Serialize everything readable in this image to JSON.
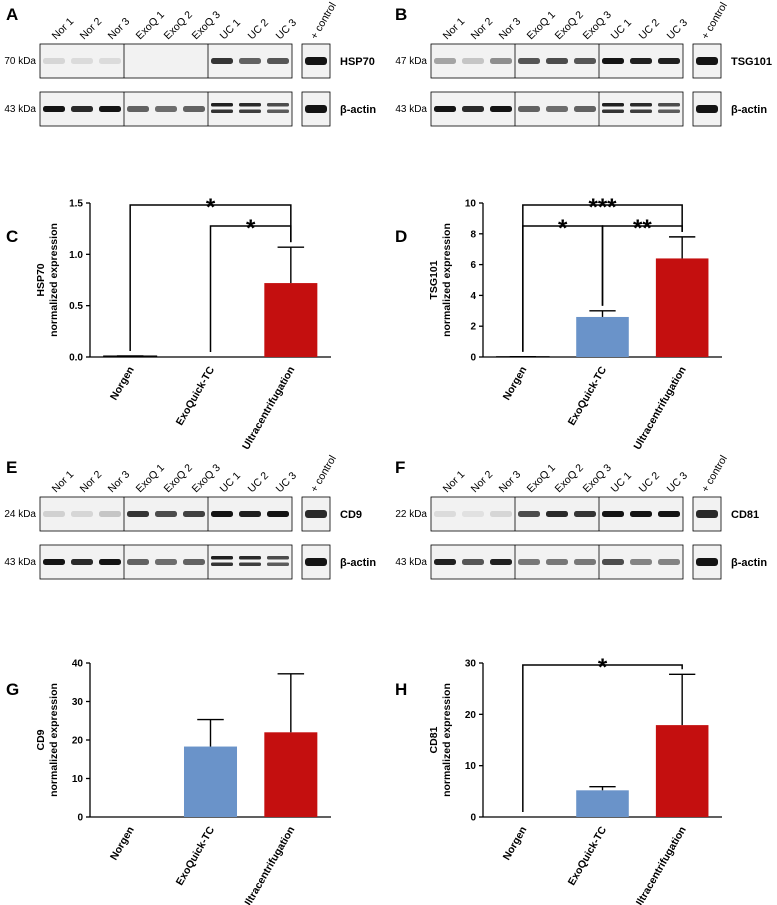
{
  "colors": {
    "norgen": "#ffffff",
    "exoquick": "#6a93c9",
    "uc": "#c40f0f",
    "band": "#141414"
  },
  "blots": [
    {
      "id": "A",
      "label": "A",
      "lanes": [
        "Nor 1",
        "Nor 2",
        "Nor 3",
        "ExoQ 1",
        "ExoQ 2",
        "ExoQ 3",
        "UC 1",
        "UC 2",
        "UC 3"
      ],
      "control_label": "+ control",
      "rows": [
        {
          "kda": "70 kDa",
          "protein": "HSP70",
          "intensities": [
            0.12,
            0.1,
            0.1,
            0,
            0,
            0,
            0.85,
            0.65,
            0.7
          ],
          "double": false,
          "control": 1.0
        },
        {
          "kda": "43 kDa",
          "protein": "β-actin",
          "intensities": [
            1.0,
            0.9,
            1.0,
            0.65,
            0.6,
            0.65,
            0.95,
            0.9,
            0.75
          ],
          "double": true,
          "control": 1.0
        }
      ]
    },
    {
      "id": "B",
      "label": "B",
      "lanes": [
        "Nor 1",
        "Nor 2",
        "Nor 3",
        "ExoQ 1",
        "ExoQ 2",
        "ExoQ 3",
        "UC 1",
        "UC 2",
        "UC 3"
      ],
      "control_label": "+ control",
      "rows": [
        {
          "kda": "47 kDa",
          "protein": "TSG101",
          "intensities": [
            0.35,
            0.2,
            0.45,
            0.7,
            0.75,
            0.7,
            1.0,
            0.95,
            0.95
          ],
          "double": false,
          "control": 1.0
        },
        {
          "kda": "43 kDa",
          "protein": "β-actin",
          "intensities": [
            1.0,
            0.9,
            1.0,
            0.65,
            0.6,
            0.65,
            0.95,
            0.9,
            0.75
          ],
          "double": true,
          "control": 1.0
        }
      ]
    },
    {
      "id": "E",
      "label": "E",
      "lanes": [
        "Nor 1",
        "Nor 2",
        "Nor 3",
        "ExoQ 1",
        "ExoQ 2",
        "ExoQ 3",
        "UC 1",
        "UC 2",
        "UC 3"
      ],
      "control_label": "+ control",
      "rows": [
        {
          "kda": "24 kDa",
          "protein": "CD9",
          "intensities": [
            0.15,
            0.12,
            0.2,
            0.85,
            0.75,
            0.8,
            1.0,
            0.95,
            1.0
          ],
          "double": false,
          "control": 0.9
        },
        {
          "kda": "43 kDa",
          "protein": "β-actin",
          "intensities": [
            1.0,
            0.9,
            1.0,
            0.65,
            0.6,
            0.65,
            0.95,
            0.9,
            0.75
          ],
          "double": true,
          "control": 1.0
        }
      ]
    },
    {
      "id": "F",
      "label": "F",
      "lanes": [
        "Nor 1",
        "Nor 2",
        "Nor 3",
        "ExoQ 1",
        "ExoQ 2",
        "ExoQ 3",
        "UC 1",
        "UC 2",
        "UC 3"
      ],
      "control_label": "+ control",
      "rows": [
        {
          "kda": "22 kDa",
          "protein": "CD81",
          "intensities": [
            0.1,
            0.08,
            0.12,
            0.75,
            0.9,
            0.85,
            1.0,
            1.0,
            1.0
          ],
          "double": false,
          "control": 0.9
        },
        {
          "kda": "43 kDa",
          "protein": "β-actin",
          "intensities": [
            0.95,
            0.7,
            0.95,
            0.55,
            0.55,
            0.55,
            0.75,
            0.5,
            0.5
          ],
          "double": false,
          "control": 1.0
        }
      ]
    }
  ],
  "chart_data": [
    {
      "id": "C",
      "label": "C",
      "type": "bar",
      "categories": [
        "Norgen",
        "ExoQuick-TC",
        "Ultracentrifugation"
      ],
      "values": [
        0.01,
        0,
        0.72
      ],
      "errors": [
        0.0,
        0,
        0.35
      ],
      "ylabel": "HSP70 normalized expression",
      "ylim": [
        0,
        1.5
      ],
      "yticks": [
        0.0,
        0.5,
        1.0,
        1.5
      ],
      "tick_labels": [
        "0.0",
        "0.5",
        "1.0",
        "1.5"
      ],
      "significance": [
        {
          "from": 0,
          "to": 2,
          "label": "*"
        },
        {
          "from": 1,
          "to": 2,
          "label": "*"
        }
      ]
    },
    {
      "id": "D",
      "label": "D",
      "type": "bar",
      "categories": [
        "Norgen",
        "ExoQuick-TC",
        "Ultracentrifugation"
      ],
      "values": [
        0.02,
        2.6,
        6.4
      ],
      "errors": [
        0.0,
        0.4,
        1.4
      ],
      "ylabel": "TSG101 normalized expression",
      "ylim": [
        0,
        10
      ],
      "yticks": [
        0,
        2,
        4,
        6,
        8,
        10
      ],
      "tick_labels": [
        "0",
        "2",
        "4",
        "6",
        "8",
        "10"
      ],
      "significance": [
        {
          "from": 0,
          "to": 2,
          "label": "***"
        },
        {
          "from": 0,
          "to": 1,
          "label": "*"
        },
        {
          "from": 1,
          "to": 2,
          "label": "**"
        }
      ]
    },
    {
      "id": "G",
      "label": "G",
      "type": "bar",
      "categories": [
        "Norgen",
        "ExoQuick-TC",
        "Ultracentrifugation"
      ],
      "values": [
        0,
        18.3,
        22.0
      ],
      "errors": [
        0,
        7.0,
        15.2
      ],
      "ylabel": "CD9 normalized expression",
      "ylim": [
        0,
        40
      ],
      "yticks": [
        0,
        10,
        20,
        30,
        40
      ],
      "tick_labels": [
        "0",
        "10",
        "20",
        "30",
        "40"
      ],
      "significance": []
    },
    {
      "id": "H",
      "label": "H",
      "type": "bar",
      "categories": [
        "Norgen",
        "ExoQuick-TC",
        "Ultracentrifugation"
      ],
      "values": [
        0,
        5.2,
        17.9
      ],
      "errors": [
        0,
        0.7,
        9.9
      ],
      "ylabel": "CD81 normalized expression",
      "ylim": [
        0,
        30
      ],
      "yticks": [
        0,
        10,
        20,
        30
      ],
      "tick_labels": [
        "0",
        "10",
        "20",
        "30"
      ],
      "significance": [
        {
          "from": 0,
          "to": 2,
          "label": "*"
        }
      ]
    }
  ]
}
